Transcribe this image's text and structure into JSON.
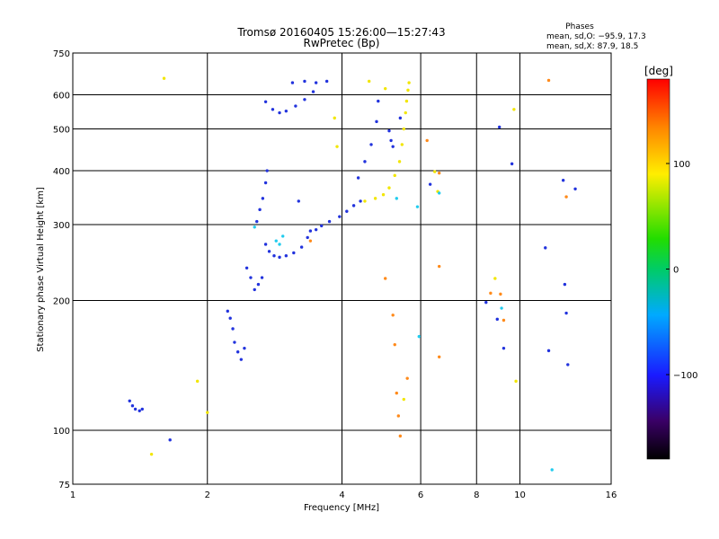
{
  "title_line1": "Tromsø 20160405 15:26:00—15:27:43",
  "title_line2": "RwPretec (Bp)",
  "stats": {
    "heading": "Phases",
    "line1": "mean, sd,O: −95.9, 17.3",
    "line2": "mean, sd,X:  87.9, 18.5"
  },
  "chart_data": {
    "type": "scatter",
    "xlabel": "Frequency [MHz]",
    "ylabel": "Stationary phase Virtual Height [km]",
    "x_scale": "log2",
    "y_scale": "log",
    "xlim": [
      1,
      16
    ],
    "ylim": [
      75,
      750
    ],
    "xticks": [
      "1",
      "2",
      "4",
      "6",
      "8",
      "10",
      "16"
    ],
    "yticks": [
      "75",
      "100",
      "200",
      "300",
      "400",
      "500",
      "600",
      "750"
    ],
    "x_gridlines": [
      2,
      4,
      6,
      8,
      10
    ],
    "y_gridlines": [
      100,
      200,
      300,
      400,
      500,
      600
    ],
    "grid": true,
    "colorbar": {
      "label": "[deg]",
      "range": [
        -180,
        180
      ],
      "ticks": [
        "100",
        "0",
        "−100"
      ],
      "tick_values": [
        100,
        0,
        -100
      ]
    },
    "series": [
      {
        "values": [
          [
            1.34,
            117
          ],
          [
            1.36,
            114
          ],
          [
            1.38,
            112
          ],
          [
            1.41,
            111
          ],
          [
            1.43,
            112
          ],
          [
            2.22,
            189
          ],
          [
            2.25,
            182
          ],
          [
            2.28,
            172
          ],
          [
            2.3,
            160
          ],
          [
            2.34,
            152
          ],
          [
            2.38,
            146
          ],
          [
            2.42,
            155
          ],
          [
            2.45,
            238
          ],
          [
            2.5,
            226
          ],
          [
            2.55,
            212
          ],
          [
            2.6,
            218
          ],
          [
            2.65,
            226
          ],
          [
            2.58,
            305
          ],
          [
            2.62,
            325
          ],
          [
            2.66,
            345
          ],
          [
            2.7,
            375
          ],
          [
            2.72,
            400
          ],
          [
            2.7,
            270
          ],
          [
            2.75,
            260
          ],
          [
            2.82,
            254
          ],
          [
            2.9,
            252
          ],
          [
            3.0,
            254
          ],
          [
            3.12,
            258
          ],
          [
            3.25,
            266
          ],
          [
            3.35,
            280
          ],
          [
            3.5,
            292
          ],
          [
            3.6,
            298
          ],
          [
            3.75,
            305
          ],
          [
            3.95,
            313
          ],
          [
            4.1,
            322
          ],
          [
            4.25,
            332
          ],
          [
            4.4,
            340
          ],
          [
            2.7,
            578
          ],
          [
            2.8,
            555
          ],
          [
            2.9,
            545
          ],
          [
            3.0,
            550
          ],
          [
            3.15,
            565
          ],
          [
            3.3,
            585
          ],
          [
            3.45,
            610
          ],
          [
            3.1,
            640
          ],
          [
            3.3,
            645
          ],
          [
            3.5,
            640
          ],
          [
            3.7,
            645
          ],
          [
            4.35,
            385
          ],
          [
            4.5,
            420
          ],
          [
            4.65,
            460
          ],
          [
            4.78,
            520
          ],
          [
            4.82,
            580
          ],
          [
            5.1,
            495
          ],
          [
            5.15,
            470
          ],
          [
            5.2,
            455
          ],
          [
            3.2,
            340
          ],
          [
            3.4,
            290
          ],
          [
            5.4,
            530
          ],
          [
            6.3,
            372
          ],
          [
            8.4,
            198
          ],
          [
            8.9,
            181
          ],
          [
            9.2,
            155
          ],
          [
            9.6,
            415
          ],
          [
            11.4,
            265
          ],
          [
            12.5,
            380
          ],
          [
            12.6,
            218
          ],
          [
            12.7,
            187
          ],
          [
            12.8,
            142
          ],
          [
            13.3,
            363
          ],
          [
            11.6,
            153
          ],
          [
            1.65,
            95
          ],
          [
            9.0,
            505
          ]
        ]
      },
      {
        "values": [
          [
            4.5,
            340
          ],
          [
            4.75,
            345
          ],
          [
            4.95,
            352
          ],
          [
            5.1,
            365
          ],
          [
            5.25,
            390
          ],
          [
            5.38,
            420
          ],
          [
            5.45,
            460
          ],
          [
            5.5,
            500
          ],
          [
            5.55,
            545
          ],
          [
            5.58,
            580
          ],
          [
            5.62,
            615
          ],
          [
            5.65,
            640
          ],
          [
            3.85,
            530
          ],
          [
            3.9,
            455
          ],
          [
            4.6,
            645
          ],
          [
            5.0,
            620
          ],
          [
            6.45,
            398
          ],
          [
            6.55,
            358
          ],
          [
            8.8,
            225
          ],
          [
            9.8,
            130
          ],
          [
            9.7,
            555
          ],
          [
            5.5,
            118
          ],
          [
            1.6,
            655
          ],
          [
            1.5,
            88
          ],
          [
            1.9,
            130
          ],
          [
            2.0,
            110
          ]
        ]
      },
      {
        "values": [
          [
            2.85,
            275
          ],
          [
            2.9,
            270
          ],
          [
            2.95,
            282
          ],
          [
            5.9,
            330
          ],
          [
            5.95,
            165
          ],
          [
            6.6,
            355
          ],
          [
            9.1,
            192
          ],
          [
            11.8,
            81
          ],
          [
            5.3,
            345
          ],
          [
            2.55,
            296
          ]
        ]
      },
      {
        "values": [
          [
            5.2,
            185
          ],
          [
            5.25,
            158
          ],
          [
            5.3,
            122
          ],
          [
            5.35,
            108
          ],
          [
            5.4,
            97
          ],
          [
            5.6,
            132
          ],
          [
            6.2,
            470
          ],
          [
            6.6,
            395
          ],
          [
            6.6,
            240
          ],
          [
            6.6,
            148
          ],
          [
            8.6,
            208
          ],
          [
            9.05,
            207
          ],
          [
            9.2,
            180
          ],
          [
            11.6,
            648
          ],
          [
            12.7,
            348
          ],
          [
            3.4,
            275
          ],
          [
            5.0,
            225
          ]
        ]
      }
    ]
  }
}
